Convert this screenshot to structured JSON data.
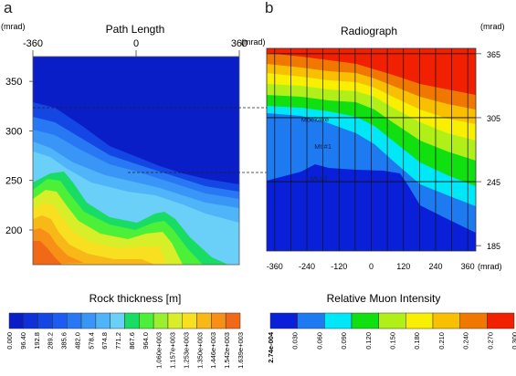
{
  "chart_data": [
    {
      "panel": "a",
      "type": "heatmap",
      "title": "Path Length",
      "yunit": "(mrad)",
      "x_ticks": [
        "-360",
        "0",
        "360"
      ],
      "y_ticks": [
        "350",
        "300",
        "250",
        "200"
      ],
      "xlim": [
        -360,
        360
      ],
      "ylim": [
        165,
        375
      ],
      "guide_lines_mrad": [
        311,
        250
      ],
      "colorbar": {
        "title": "Rock thickness [m]",
        "colors": [
          "#0a1ec8",
          "#0e32d8",
          "#1446e4",
          "#1c5cf0",
          "#2878f4",
          "#3a96f6",
          "#50b4f8",
          "#6ad0f8",
          "#18dc64",
          "#4cf038",
          "#9af030",
          "#d8ee28",
          "#f8e020",
          "#f8b818",
          "#f89018",
          "#f06818"
        ],
        "labels": [
          "0.000",
          "96.40",
          "192.8",
          "289.2",
          "385.6",
          "482.0",
          "578.4",
          "674.8",
          "771.2",
          "867.6",
          "964.0",
          "1.060e+003",
          "1.157e+003",
          "1.253e+003",
          "1.350e+003",
          "1.446e+003",
          "1.542e+003",
          "1.639e+003"
        ]
      }
    },
    {
      "panel": "b",
      "type": "heatmap",
      "title": "Radiograph",
      "yunit": "(mrad)",
      "xunit": "(mrad)",
      "x_ticks": [
        "-360",
        "-240",
        "-120",
        "0",
        "120",
        "240",
        "360"
      ],
      "y_ticks": [
        "365",
        "305",
        "245",
        "185"
      ],
      "xlim": [
        -390,
        390
      ],
      "ylim": [
        180,
        370
      ],
      "annotations": [
        "Moekake",
        "Mt.#1",
        "Mt.#2"
      ],
      "colorbar": {
        "title": "Relative Muon Intensity",
        "colors": [
          "#0a20d8",
          "#1e7af0",
          "#00e8f8",
          "#10e010",
          "#b0f018",
          "#f8f000",
          "#f8c000",
          "#f07800",
          "#f02000"
        ],
        "labels": [
          "2.74e-004",
          "0.030",
          "0.060",
          "0.090",
          "0.120",
          "0.150",
          "0.180",
          "0.210",
          "0.240",
          "0.270",
          "0.300"
        ]
      }
    }
  ],
  "panel_labels": {
    "a": "a",
    "b": "b"
  }
}
